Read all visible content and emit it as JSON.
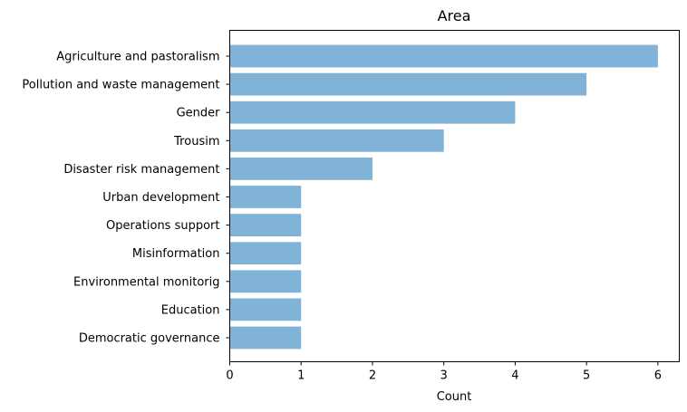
{
  "chart_data": {
    "type": "bar",
    "orientation": "horizontal",
    "title": "Area",
    "xlabel": "Count",
    "ylabel": "",
    "xlim": [
      0,
      6.3
    ],
    "xticks": [
      0,
      1,
      2,
      3,
      4,
      5,
      6
    ],
    "grid": false,
    "bar_color": "#80b3d7",
    "categories": [
      "Agriculture and pastoralism",
      "Pollution and waste management",
      "Gender",
      "Trousim",
      "Disaster risk management",
      "Urban development",
      "Operations support",
      "Misinformation",
      "Environmental monitorig",
      "Education",
      "Democratic governance"
    ],
    "values": [
      6,
      5,
      4,
      3,
      2,
      1,
      1,
      1,
      1,
      1,
      1
    ]
  }
}
